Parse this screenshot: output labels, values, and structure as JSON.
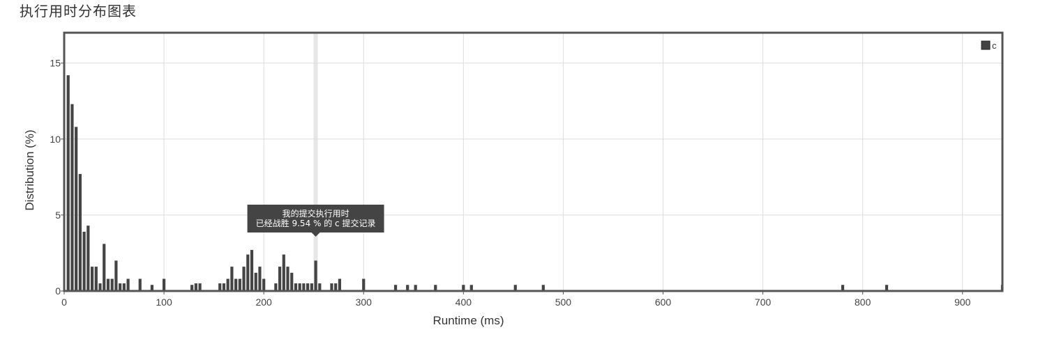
{
  "page": {
    "title": "执行用时分布图表"
  },
  "chart_data": {
    "type": "bar",
    "xlabel": "Runtime (ms)",
    "ylabel": "Distribution (%)",
    "xlim": [
      0,
      940
    ],
    "ylim": [
      0,
      17
    ],
    "x_ticks": [
      0,
      100,
      200,
      300,
      400,
      500,
      600,
      700,
      800,
      900
    ],
    "y_ticks": [
      0,
      5,
      10,
      15
    ],
    "grid": true,
    "legend": {
      "placement": "top-right",
      "entries": [
        "c"
      ]
    },
    "highlight_x": 252,
    "tooltip": {
      "line1": "我的提交执行用时",
      "line2": "已经战胜 9.54 % 的 c 提交记录"
    },
    "colors": {
      "bar": "#444444",
      "grid": "#dddddd",
      "frame": "#555555",
      "highlight": "#e6e6e6",
      "tooltip_bg": "#444444"
    },
    "series": [
      {
        "name": "c",
        "x": [
          4,
          8,
          12,
          16,
          20,
          24,
          28,
          32,
          36,
          40,
          44,
          48,
          52,
          56,
          60,
          64,
          76,
          88,
          100,
          128,
          132,
          136,
          156,
          160,
          164,
          168,
          172,
          176,
          180,
          184,
          188,
          192,
          196,
          200,
          212,
          216,
          220,
          224,
          228,
          232,
          236,
          240,
          244,
          248,
          252,
          256,
          268,
          272,
          276,
          300,
          332,
          344,
          352,
          372,
          400,
          408,
          452,
          480,
          780,
          824,
          940
        ],
        "values": [
          14.2,
          12.3,
          10.8,
          7.7,
          3.9,
          4.3,
          1.6,
          1.6,
          0.5,
          3.1,
          0.8,
          0.8,
          2.0,
          0.5,
          0.5,
          0.8,
          0.8,
          0.4,
          0.8,
          0.4,
          0.5,
          0.5,
          0.5,
          0.5,
          0.8,
          1.6,
          0.8,
          0.8,
          1.6,
          2.4,
          2.7,
          1.2,
          1.6,
          0.8,
          0.5,
          1.6,
          2.4,
          1.6,
          1.2,
          0.5,
          0.5,
          0.5,
          0.5,
          0.5,
          2.0,
          0.5,
          0.5,
          0.5,
          0.8,
          0.8,
          0.4,
          0.4,
          0.4,
          0.4,
          0.4,
          0.4,
          0.4,
          0.4,
          0.4,
          0.4,
          0.4
        ]
      }
    ]
  }
}
